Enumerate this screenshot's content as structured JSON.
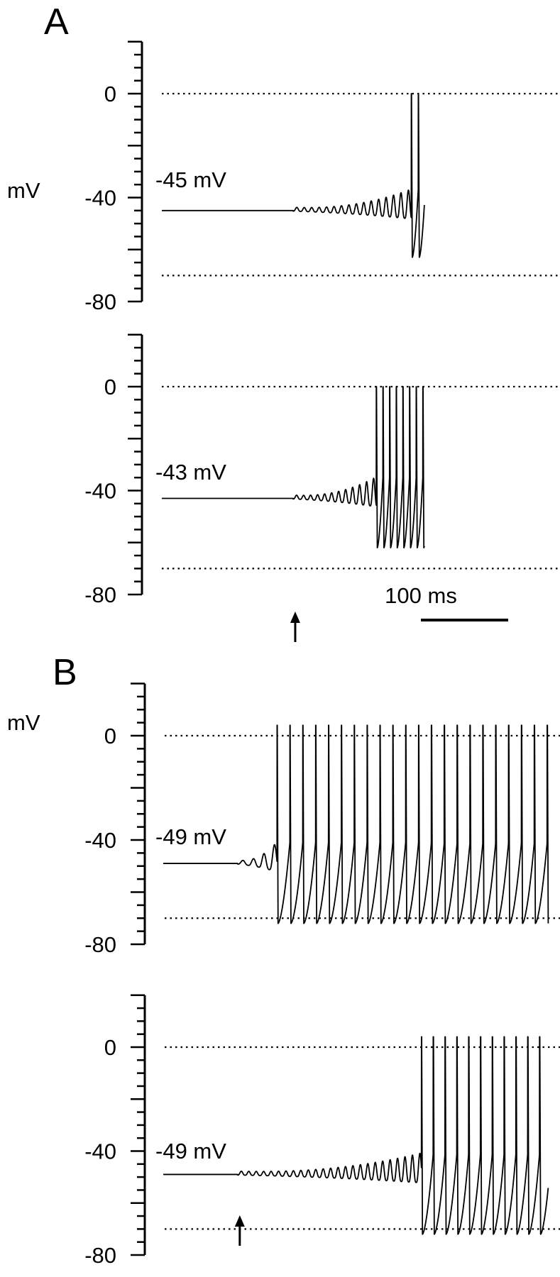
{
  "figure": {
    "panels": [
      {
        "letter": "A",
        "y_unit": "mV"
      },
      {
        "letter": "B",
        "y_unit": "mV"
      }
    ],
    "scale_bar": {
      "label": "100 ms",
      "duration_ms": 100
    }
  },
  "chart_data": [
    {
      "type": "line",
      "panel": "A",
      "ylabel": "mV",
      "ylim": [
        -80,
        20
      ],
      "yticks": [
        0,
        -40,
        -80
      ],
      "ytick_labels": [
        "0",
        "-40",
        "-80"
      ],
      "reference_levels_mV": [
        0,
        -70
      ],
      "holding_label": "-45 mV",
      "series": [
        {
          "baseline_mV": -45,
          "onset_ms": 150,
          "spike_start_ms": 285,
          "end_ms": 300,
          "osc_period_ms": 8.5,
          "spike_period_ms": 8.0,
          "spike_peak_mV": 0,
          "ahp_mV": -63
        }
      ]
    },
    {
      "type": "line",
      "panel": "A",
      "ylabel": "",
      "ylim": [
        -80,
        20
      ],
      "yticks": [
        0,
        -40,
        -80
      ],
      "ytick_labels": [
        "0",
        "-40",
        "-80"
      ],
      "reference_levels_mV": [
        0,
        -70
      ],
      "holding_label": "-43 mV",
      "series": [
        {
          "baseline_mV": -43,
          "onset_ms": 150,
          "spike_start_ms": 245,
          "end_ms": 300,
          "osc_period_ms": 8.0,
          "spike_period_ms": 7.6,
          "spike_peak_mV": 0,
          "ahp_mV": -62
        }
      ],
      "stimulus_arrow_ms": 150
    },
    {
      "type": "line",
      "panel": "B",
      "ylabel": "mV",
      "ylim": [
        -80,
        20
      ],
      "yticks": [
        0,
        -40,
        -80
      ],
      "ytick_labels": [
        "0",
        "-40",
        "-80"
      ],
      "reference_levels_mV": [
        0,
        -70
      ],
      "holding_label": "-49 mV",
      "series": [
        {
          "baseline_mV": -49,
          "onset_ms": 85,
          "spike_start_ms": 130,
          "end_ms": 440,
          "osc_period_ms": 12,
          "spike_period_ms": 14.7,
          "spike_peak_mV": 4,
          "ahp_mV": -72
        }
      ]
    },
    {
      "type": "line",
      "panel": "B",
      "ylabel": "",
      "ylim": [
        -80,
        20
      ],
      "yticks": [
        0,
        -40,
        -80
      ],
      "ytick_labels": [
        "0",
        "-40",
        "-80"
      ],
      "reference_levels_mV": [
        0,
        -70
      ],
      "holding_label": "-49 mV",
      "series": [
        {
          "baseline_mV": -49,
          "onset_ms": 85,
          "spike_start_ms": 295,
          "end_ms": 440,
          "osc_period_ms": 8.5,
          "spike_period_ms": 13.5,
          "spike_peak_mV": 4,
          "ahp_mV": -72
        }
      ],
      "stimulus_arrow_ms": 85
    }
  ]
}
